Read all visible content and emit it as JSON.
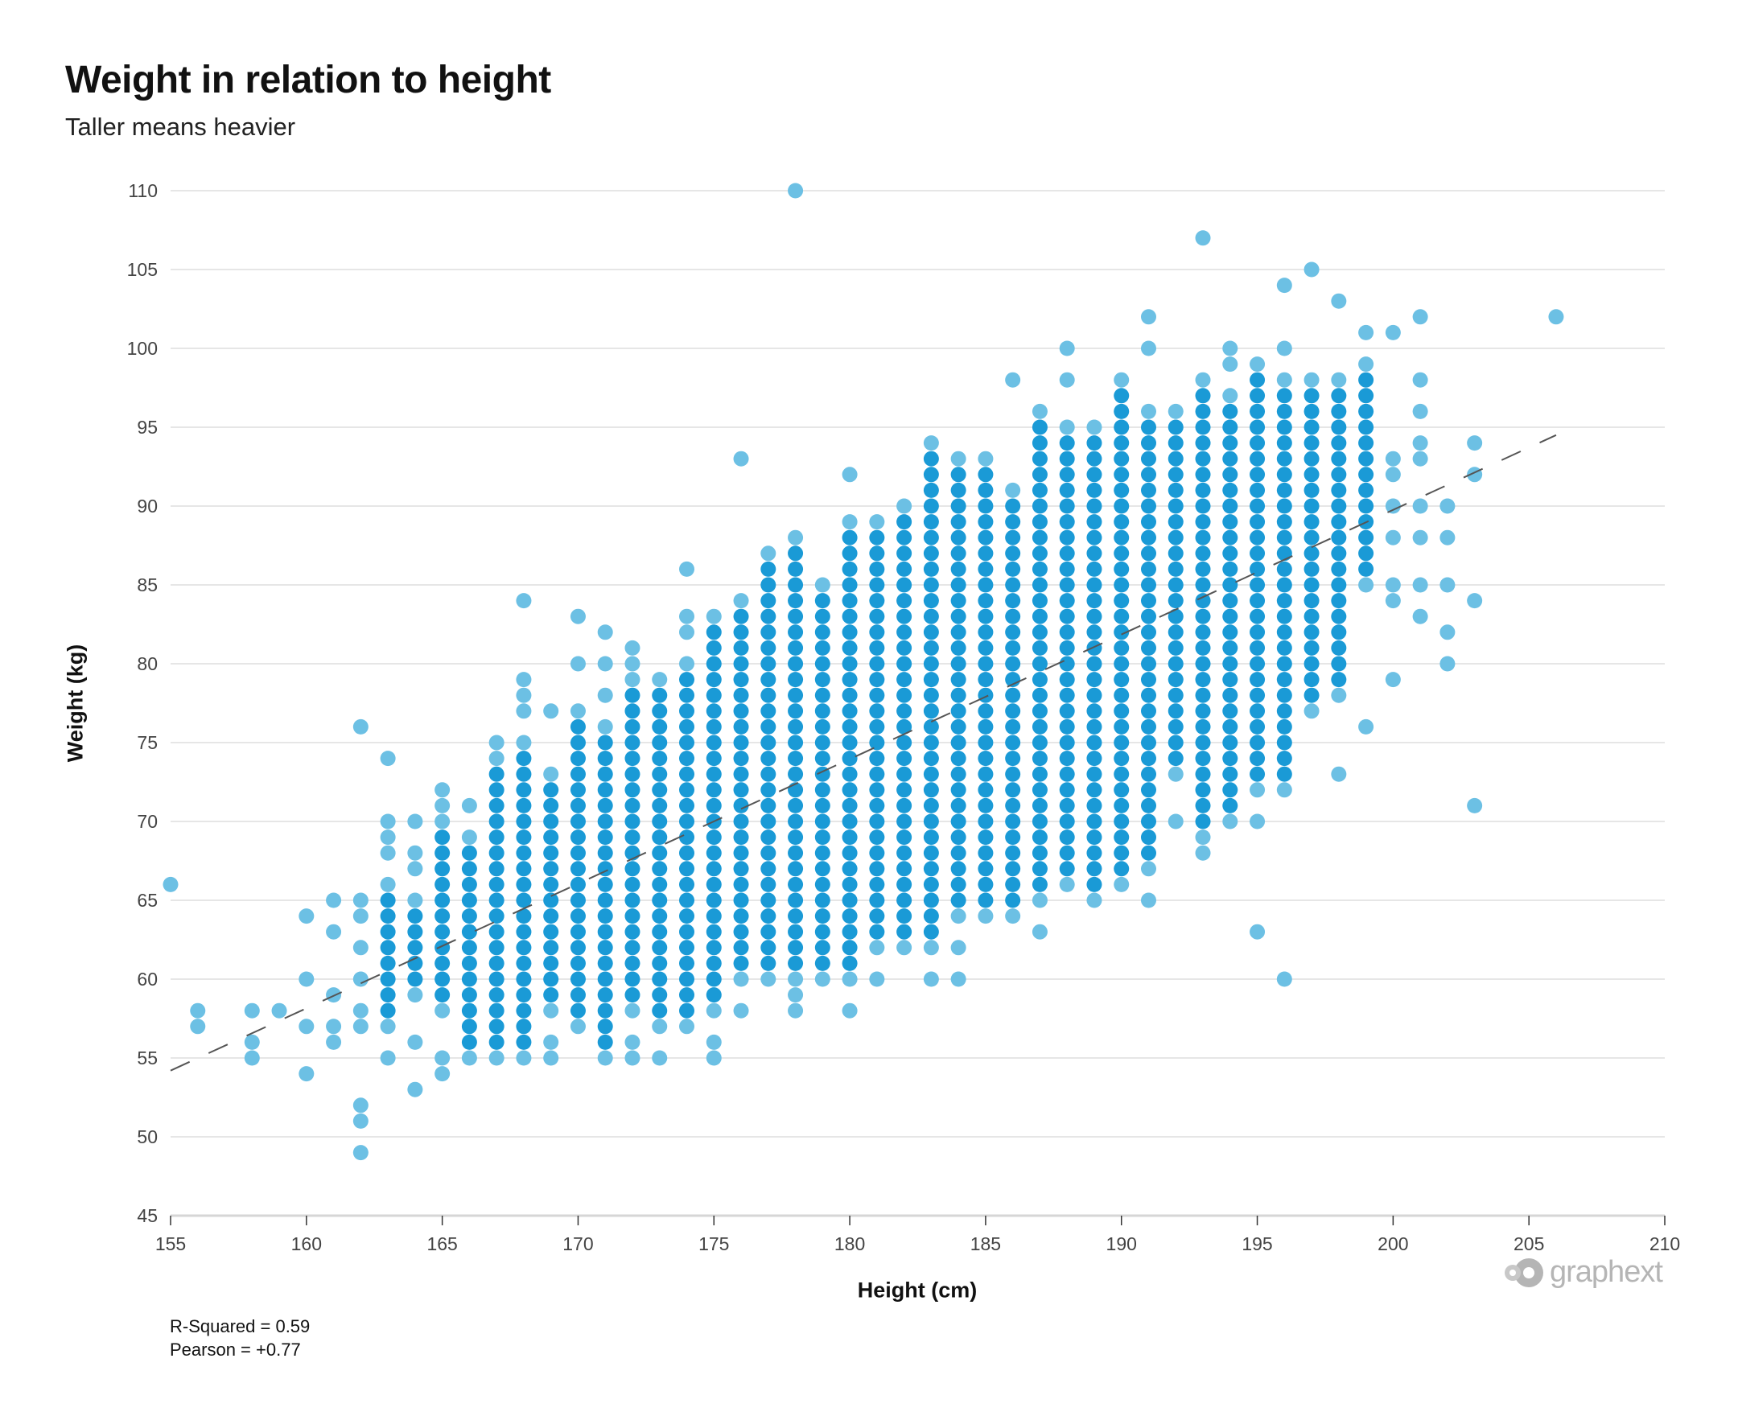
{
  "chart_data": {
    "type": "scatter",
    "title": "Weight in relation to height",
    "subtitle": "Taller means heavier",
    "xlabel": "Height (cm)",
    "ylabel": "Weight (kg)",
    "xlim": [
      155,
      210
    ],
    "ylim": [
      45,
      110
    ],
    "xticks": [
      155,
      160,
      165,
      170,
      175,
      180,
      185,
      190,
      195,
      200,
      205,
      210
    ],
    "yticks": [
      45,
      50,
      55,
      60,
      65,
      70,
      75,
      80,
      85,
      90,
      95,
      100,
      105,
      110
    ],
    "grid": "horizontal",
    "colors": {
      "dense": "#1a9ad6",
      "sparse": "#6cc0e4",
      "trend": "#555555",
      "grid": "#dddddd"
    },
    "trendline": {
      "style": "dashed",
      "from": [
        155,
        54.2
      ],
      "to": [
        206,
        94.5
      ]
    },
    "stats": {
      "r_squared": "R-Squared = 0.59",
      "pearson": "Pearson = +0.77"
    },
    "columns": [
      {
        "x": 155,
        "range": [],
        "extra": [
          66
        ]
      },
      {
        "x": 156,
        "range": [],
        "extra": [
          57,
          58
        ]
      },
      {
        "x": 158,
        "range": [],
        "extra": [
          55,
          56,
          58
        ]
      },
      {
        "x": 159,
        "range": [],
        "extra": [
          58
        ]
      },
      {
        "x": 160,
        "range": [],
        "extra": [
          54,
          57,
          60,
          64
        ]
      },
      {
        "x": 161,
        "range": [],
        "extra": [
          56,
          57,
          59,
          63,
          65
        ]
      },
      {
        "x": 162,
        "range": [],
        "extra": [
          49,
          51,
          52,
          57,
          58,
          60,
          62,
          64,
          65,
          76
        ]
      },
      {
        "x": 163,
        "range": [
          57,
          66
        ],
        "extra": [
          55,
          68,
          69,
          70,
          74
        ]
      },
      {
        "x": 164,
        "range": [
          59,
          65
        ],
        "extra": [
          53,
          56,
          67,
          68,
          70
        ]
      },
      {
        "x": 165,
        "range": [
          58,
          70
        ],
        "extra": [
          54,
          55,
          71,
          72
        ]
      },
      {
        "x": 166,
        "range": [
          55,
          69
        ],
        "extra": [
          71
        ]
      },
      {
        "x": 167,
        "range": [
          55,
          74
        ],
        "extra": [
          75
        ]
      },
      {
        "x": 168,
        "range": [
          55,
          75
        ],
        "extra": [
          77,
          78,
          79,
          84
        ]
      },
      {
        "x": 169,
        "range": [
          58,
          73
        ],
        "extra": [
          55,
          56,
          77
        ]
      },
      {
        "x": 170,
        "range": [
          57,
          77
        ],
        "extra": [
          80,
          83
        ]
      },
      {
        "x": 171,
        "range": [
          55,
          76
        ],
        "extra": [
          78,
          80,
          82
        ]
      },
      {
        "x": 172,
        "range": [
          58,
          79
        ],
        "extra": [
          55,
          56,
          80,
          81
        ]
      },
      {
        "x": 173,
        "range": [
          57,
          79
        ],
        "extra": [
          55
        ]
      },
      {
        "x": 174,
        "range": [
          57,
          80
        ],
        "extra": [
          82,
          83,
          86
        ]
      },
      {
        "x": 175,
        "range": [
          58,
          83
        ],
        "extra": [
          55,
          56
        ]
      },
      {
        "x": 176,
        "range": [
          60,
          84
        ],
        "extra": [
          58,
          93
        ]
      },
      {
        "x": 177,
        "range": [
          60,
          87
        ],
        "extra": []
      },
      {
        "x": 178,
        "range": [
          60,
          88
        ],
        "extra": [
          58,
          59,
          110
        ]
      },
      {
        "x": 179,
        "range": [
          60,
          85
        ],
        "extra": []
      },
      {
        "x": 180,
        "range": [
          60,
          89
        ],
        "extra": [
          58,
          92
        ]
      },
      {
        "x": 181,
        "range": [
          62,
          89
        ],
        "extra": [
          60
        ]
      },
      {
        "x": 182,
        "range": [
          62,
          90
        ],
        "extra": []
      },
      {
        "x": 183,
        "range": [
          62,
          94
        ],
        "extra": [
          60
        ]
      },
      {
        "x": 184,
        "range": [
          64,
          93
        ],
        "extra": [
          60,
          62
        ]
      },
      {
        "x": 185,
        "range": [
          64,
          93
        ],
        "extra": []
      },
      {
        "x": 186,
        "range": [
          64,
          91
        ],
        "extra": [
          98
        ]
      },
      {
        "x": 187,
        "range": [
          65,
          96
        ],
        "extra": [
          63
        ]
      },
      {
        "x": 188,
        "range": [
          66,
          95
        ],
        "extra": [
          98,
          100
        ]
      },
      {
        "x": 189,
        "range": [
          65,
          95
        ],
        "extra": []
      },
      {
        "x": 190,
        "range": [
          66,
          98
        ],
        "extra": []
      },
      {
        "x": 191,
        "range": [
          67,
          96
        ],
        "extra": [
          65,
          100,
          102
        ]
      },
      {
        "x": 192,
        "range": [
          73,
          96
        ],
        "extra": [
          70
        ]
      },
      {
        "x": 193,
        "range": [
          69,
          98
        ],
        "extra": [
          68,
          107
        ]
      },
      {
        "x": 194,
        "range": [
          70,
          97
        ],
        "extra": [
          99,
          100
        ]
      },
      {
        "x": 195,
        "range": [
          72,
          99
        ],
        "extra": [
          63,
          70
        ]
      },
      {
        "x": 196,
        "range": [
          72,
          98
        ],
        "extra": [
          60,
          100,
          104
        ]
      },
      {
        "x": 197,
        "range": [
          77,
          98
        ],
        "extra": [
          105
        ]
      },
      {
        "x": 198,
        "range": [
          78,
          98
        ],
        "extra": [
          73,
          103
        ]
      },
      {
        "x": 199,
        "range": [
          85,
          99
        ],
        "extra": [
          76,
          101
        ]
      },
      {
        "x": 200,
        "range": [],
        "extra": [
          79,
          84,
          85,
          88,
          90,
          92,
          93,
          101
        ]
      },
      {
        "x": 201,
        "range": [],
        "extra": [
          83,
          85,
          88,
          90,
          93,
          94,
          96,
          98,
          102
        ]
      },
      {
        "x": 202,
        "range": [],
        "extra": [
          80,
          82,
          85,
          88,
          90
        ]
      },
      {
        "x": 203,
        "range": [],
        "extra": [
          71,
          84,
          92,
          94
        ]
      },
      {
        "x": 206,
        "range": [],
        "extra": [
          102
        ]
      }
    ]
  },
  "branding": {
    "logo_text": "graphext"
  }
}
